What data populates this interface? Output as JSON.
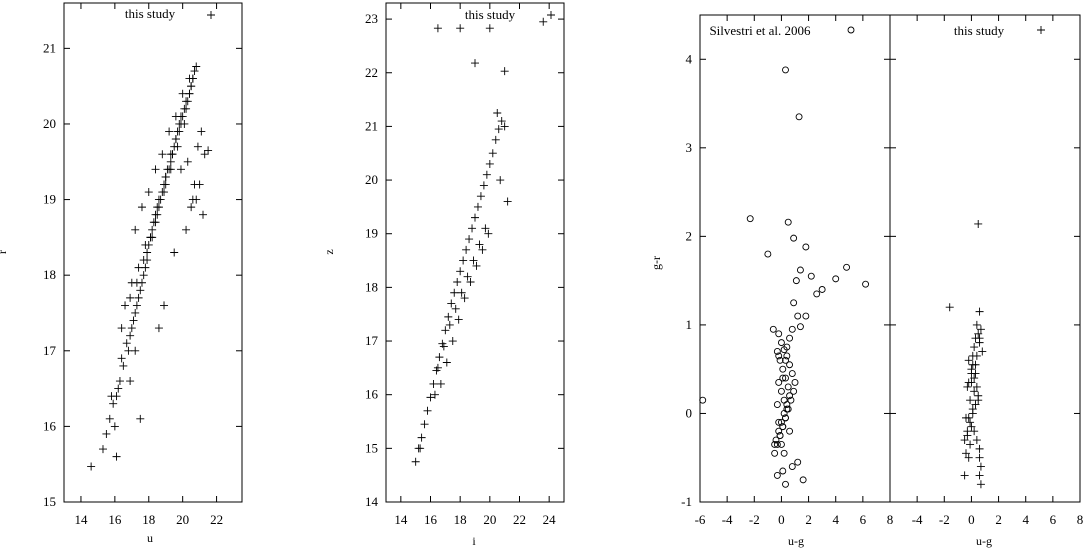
{
  "chart_data": [
    {
      "type": "scatter",
      "xlabel": "u",
      "ylabel": "r",
      "xlim": [
        13,
        23.5
      ],
      "ylim": [
        15,
        21.6
      ],
      "xticks": [
        14,
        16,
        18,
        20,
        22
      ],
      "yticks": [
        15,
        16,
        17,
        18,
        19,
        20,
        21
      ],
      "legend": "this study",
      "legend_position": "top",
      "series": [
        {
          "name": "this study",
          "marker": "+",
          "x": [
            14.6,
            15.3,
            15.5,
            15.7,
            15.9,
            16.1,
            16.0,
            16.3,
            16.5,
            16.2,
            16.8,
            16.4,
            16.9,
            17.1,
            16.7,
            17.3,
            17.0,
            17.5,
            17.2,
            17.7,
            17.4,
            17.9,
            17.6,
            18.0,
            17.8,
            18.2,
            17.9,
            18.4,
            18.1,
            18.5,
            18.3,
            18.7,
            18.4,
            18.9,
            18.6,
            19.0,
            18.8,
            19.2,
            19.0,
            19.3,
            19.1,
            19.5,
            19.3,
            19.6,
            19.4,
            19.8,
            19.6,
            19.9,
            19.7,
            20.1,
            19.9,
            20.2,
            20.0,
            20.4,
            20.2,
            20.5,
            20.3,
            20.6,
            20.4,
            20.7,
            20.5,
            20.8,
            20.6,
            20.3,
            20.7,
            20.5,
            20.9,
            21.1,
            21.3,
            21.5,
            20.8,
            21.2,
            16.6,
            17.0,
            17.4,
            17.8,
            18.2,
            18.6,
            19.0,
            19.4,
            19.8,
            17.2,
            17.6,
            18.0,
            18.4,
            18.8,
            19.2,
            19.6,
            20.0,
            20.4,
            16.4,
            16.9,
            17.3,
            17.7,
            18.1,
            18.5,
            18.9,
            19.3,
            19.7,
            20.1,
            15.8,
            16.1,
            17.2,
            18.6,
            16.9,
            17.5,
            18.9,
            19.5,
            20.2,
            20.6,
            21.0,
            19.9
          ],
          "y": [
            15.47,
            15.7,
            15.9,
            16.1,
            16.3,
            16.4,
            16.0,
            16.6,
            16.8,
            16.5,
            17.0,
            16.9,
            17.2,
            17.4,
            17.1,
            17.6,
            17.3,
            17.8,
            17.5,
            18.0,
            17.7,
            18.2,
            17.9,
            18.4,
            18.1,
            18.5,
            18.3,
            18.7,
            18.5,
            18.9,
            18.7,
            19.0,
            18.8,
            19.2,
            19.0,
            19.3,
            19.1,
            19.4,
            19.2,
            19.6,
            19.4,
            19.7,
            19.5,
            19.8,
            19.6,
            20.0,
            19.8,
            20.1,
            19.9,
            20.2,
            20.0,
            20.3,
            20.1,
            20.4,
            20.2,
            20.5,
            20.3,
            20.6,
            20.4,
            20.7,
            20.5,
            20.76,
            20.6,
            19.5,
            19.2,
            18.9,
            19.7,
            19.9,
            19.6,
            19.65,
            19.0,
            18.8,
            17.6,
            17.9,
            18.1,
            18.4,
            18.6,
            18.9,
            19.3,
            19.6,
            19.9,
            18.6,
            18.9,
            19.1,
            19.4,
            19.6,
            19.9,
            20.1,
            20.4,
            20.6,
            17.3,
            17.7,
            17.9,
            18.2,
            18.5,
            18.8,
            19.1,
            19.4,
            19.7,
            20.0,
            16.4,
            15.6,
            17.0,
            17.3,
            16.6,
            16.1,
            17.6,
            18.3,
            18.6,
            19.0,
            19.2,
            19.4
          ]
        }
      ]
    },
    {
      "type": "scatter",
      "xlabel": "i",
      "ylabel": "z",
      "xlim": [
        13,
        25
      ],
      "ylim": [
        14,
        23.3
      ],
      "xticks": [
        14,
        16,
        18,
        20,
        22,
        24
      ],
      "yticks": [
        14,
        15,
        16,
        17,
        18,
        19,
        20,
        21,
        22,
        23
      ],
      "legend": "this study",
      "legend_position": "top",
      "series": [
        {
          "name": "this study",
          "marker": "+",
          "x": [
            15.0,
            15.2,
            15.4,
            15.6,
            15.8,
            16.0,
            16.2,
            16.4,
            16.6,
            16.8,
            17.0,
            17.2,
            17.4,
            17.6,
            17.8,
            18.0,
            18.2,
            18.4,
            18.6,
            18.8,
            19.0,
            19.2,
            19.4,
            19.6,
            19.8,
            20.0,
            20.2,
            20.4,
            20.6,
            20.8,
            16.5,
            16.9,
            17.3,
            17.7,
            18.1,
            18.5,
            18.9,
            19.3,
            19.7,
            17.1,
            17.5,
            17.9,
            18.3,
            18.7,
            19.1,
            19.5,
            19.9,
            16.3,
            16.7,
            15.3,
            20.5,
            21.0,
            21.2,
            20.7,
            16.5,
            18.0,
            20.0,
            19.0,
            21.0,
            23.6
          ],
          "y": [
            14.75,
            15.0,
            15.2,
            15.45,
            15.7,
            15.95,
            16.2,
            16.45,
            16.7,
            16.95,
            17.2,
            17.45,
            17.7,
            17.9,
            18.1,
            18.3,
            18.5,
            18.7,
            18.9,
            19.1,
            19.3,
            19.5,
            19.7,
            19.9,
            20.1,
            20.3,
            20.5,
            20.75,
            20.95,
            21.1,
            16.5,
            16.9,
            17.3,
            17.6,
            17.9,
            18.2,
            18.5,
            18.8,
            19.1,
            16.6,
            17.0,
            17.4,
            17.8,
            18.1,
            18.4,
            18.7,
            19.0,
            16.0,
            16.2,
            15.0,
            21.25,
            21.0,
            19.6,
            20.0,
            22.83,
            22.83,
            22.83,
            22.18,
            22.03,
            22.95
          ]
        }
      ]
    },
    {
      "type": "scatter",
      "xlabel": "u-g",
      "ylabel": "g-r",
      "xlim": [
        -6,
        8
      ],
      "ylim": [
        -1,
        4.5
      ],
      "xticks": [
        -6,
        -4,
        -2,
        0,
        2,
        4,
        6,
        8
      ],
      "yticks": [
        -1,
        0,
        1,
        2,
        3,
        4
      ],
      "legend": "Silvestri et al. 2006",
      "legend_position": "top",
      "series": [
        {
          "name": "Silvestri et al. 2006",
          "marker": "o",
          "x": [
            -5.8,
            0.3,
            1.3,
            -2.3,
            -1.0,
            0.5,
            0.9,
            1.8,
            1.4,
            2.2,
            1.1,
            2.6,
            3.0,
            4.8,
            4.0,
            6.2,
            0.9,
            1.2,
            1.4,
            0.8,
            0.6,
            0.4,
            -0.2,
            1.8,
            0.8,
            1.2,
            1.6,
            0.3,
            0.1,
            -0.3,
            -0.6,
            -0.2,
            0.0,
            0.2,
            0.4,
            0.6,
            0.8,
            1.0,
            0.9,
            0.7,
            0.5,
            0.3,
            0.1,
            -0.1,
            -0.3,
            -0.5,
            -0.4,
            -0.2,
            0.0,
            0.2,
            0.4,
            0.6,
            0.5,
            0.3,
            0.1,
            -0.1,
            -0.3,
            -0.2,
            0.0,
            0.2,
            0.4,
            0.3,
            0.1,
            -0.1,
            0.0,
            0.2,
            -0.2,
            0.1,
            0.3,
            -0.3,
            0.6,
            -0.5
          ],
          "y": [
            0.15,
            3.88,
            3.35,
            2.2,
            1.8,
            2.16,
            1.98,
            1.88,
            1.62,
            1.55,
            1.5,
            1.35,
            1.4,
            1.65,
            1.52,
            1.46,
            1.25,
            1.1,
            0.98,
            0.95,
            0.85,
            0.75,
            0.65,
            1.1,
            -0.6,
            -0.55,
            -0.75,
            -0.8,
            -0.65,
            -0.7,
            0.95,
            0.9,
            0.8,
            0.72,
            0.65,
            0.55,
            0.45,
            0.35,
            0.25,
            0.15,
            0.05,
            -0.05,
            -0.15,
            -0.25,
            -0.35,
            -0.45,
            -0.3,
            -0.2,
            -0.1,
            0.0,
            0.1,
            0.2,
            0.3,
            0.4,
            0.5,
            0.6,
            0.7,
            0.35,
            0.25,
            0.15,
            0.05,
            -0.05,
            -0.15,
            -0.25,
            -0.35,
            -0.45,
            -0.1,
            0.4,
            0.6,
            0.1,
            -0.2,
            -0.35
          ]
        }
      ]
    },
    {
      "type": "scatter",
      "xlabel": "u-g",
      "ylabel": "",
      "xlim": [
        -6,
        8
      ],
      "ylim": [
        -1,
        4.5
      ],
      "xticks": [
        -4,
        -2,
        0,
        2,
        4,
        6,
        8
      ],
      "yticks": [
        -1,
        0,
        1,
        2,
        3,
        4
      ],
      "legend": "this study",
      "legend_position": "top",
      "series": [
        {
          "name": "this study",
          "marker": "+",
          "x": [
            0.5,
            -1.6,
            0.6,
            0.4,
            0.7,
            0.5,
            0.3,
            0.6,
            0.2,
            0.4,
            0.1,
            0.3,
            0.0,
            0.2,
            -0.1,
            0.1,
            -0.2,
            0.0,
            -0.3,
            -0.1,
            -0.4,
            -0.2,
            -0.5,
            -0.3,
            -0.2,
            0.0,
            0.2,
            0.4,
            0.6,
            0.8,
            0.5,
            0.3,
            0.1,
            -0.1,
            -0.3,
            0.2,
            0.4,
            0.0,
            -0.2,
            0.6,
            0.3,
            0.1,
            0.5,
            -0.4,
            0.7,
            0.6,
            -0.5,
            0.6,
            0.7
          ],
          "y": [
            2.14,
            1.2,
            1.15,
            1.0,
            0.95,
            0.9,
            0.85,
            0.8,
            0.75,
            0.65,
            0.55,
            0.45,
            0.35,
            0.25,
            0.15,
            0.05,
            -0.05,
            -0.15,
            -0.25,
            -0.35,
            -0.45,
            -0.5,
            -0.3,
            -0.2,
            0.6,
            0.5,
            0.4,
            0.3,
            0.85,
            0.7,
            0.2,
            0.1,
            0.0,
            -0.1,
            0.3,
            -0.2,
            -0.3,
            0.45,
            0.35,
            -0.4,
            0.55,
            0.65,
            0.15,
            -0.05,
            -0.6,
            -0.7,
            -0.7,
            -0.5,
            -0.8
          ]
        }
      ]
    }
  ]
}
